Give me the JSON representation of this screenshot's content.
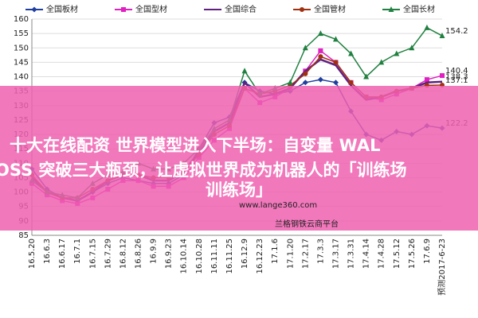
{
  "chart_data": {
    "type": "line",
    "categories": [
      "16.5.20",
      "16.6.3",
      "16.6.17",
      "16.7.1",
      "16.7.15",
      "16.7.29",
      "16.8.12",
      "16.8.26",
      "16.9.9",
      "16.9.23",
      "16.10.14",
      "16.10.28",
      "16.11.11",
      "16.11.25",
      "16.12.9",
      "16.12.23",
      "17.1.6",
      "17.1.20",
      "17.2.17",
      "17.3.3",
      "17.3.17",
      "17.3.31",
      "17.4.14",
      "17.4.28",
      "17.5.12",
      "17.5.26",
      "17.6.9",
      "预测2017-6-23"
    ],
    "series": [
      {
        "name": "全国板材",
        "color": "#1f3f9f",
        "marker": "diamond",
        "values": [
          108,
          101,
          98,
          97,
          100,
          103,
          105,
          104,
          103,
          103,
          106,
          115,
          124,
          126,
          138,
          135,
          134,
          135,
          138,
          139,
          138,
          128,
          120,
          118,
          121,
          120,
          123,
          122.2
        ]
      },
      {
        "name": "全国型材",
        "color": "#e020c0",
        "marker": "square",
        "values": [
          103,
          99,
          97,
          96,
          98,
          101,
          104,
          104,
          102,
          102,
          105,
          112,
          118,
          122,
          136,
          131,
          133,
          136,
          142,
          149,
          145,
          138,
          133,
          132,
          134,
          136,
          139,
          140.4
        ]
      },
      {
        "name": "全国综合",
        "color": "#602080",
        "marker": "none",
        "values": [
          105,
          100,
          98,
          97,
          100,
          104,
          106,
          106,
          104,
          104,
          107,
          114,
          121,
          124,
          138,
          133,
          134,
          136,
          142,
          146,
          144,
          137,
          132,
          133,
          135,
          136,
          138,
          138.3
        ]
      },
      {
        "name": "全国管材",
        "color": "#a03010",
        "marker": "circle",
        "values": [
          106,
          100,
          98,
          98,
          101,
          104,
          106,
          106,
          105,
          105,
          107,
          113,
          120,
          123,
          136,
          134,
          135,
          137,
          141,
          147,
          145,
          138,
          133,
          133,
          135,
          136,
          137,
          137.1
        ]
      },
      {
        "name": "全国长材",
        "color": "#208040",
        "marker": "triangle",
        "values": [
          104,
          100,
          99,
          98,
          103,
          106,
          107,
          110,
          108,
          108,
          110,
          115,
          122,
          125,
          142,
          134,
          136,
          138,
          150,
          155,
          153,
          148,
          140,
          145,
          148,
          150,
          157,
          154.2
        ]
      }
    ],
    "ylim": [
      85,
      160
    ],
    "yticks": [
      85,
      90,
      95,
      100,
      105,
      110,
      115,
      120,
      125,
      130,
      135,
      140,
      145,
      150,
      155,
      160
    ],
    "grid": true
  },
  "overlay": [
    "十大在线配资 世界模型进入下半场：自变量 WAL",
    "OSS 突破三大瓶颈，让虚拟世界成为机器人的「训练场",
    "训练场」"
  ],
  "watermark": [
    "www.lange360.com",
    "兰格钢铁云商平台"
  ]
}
